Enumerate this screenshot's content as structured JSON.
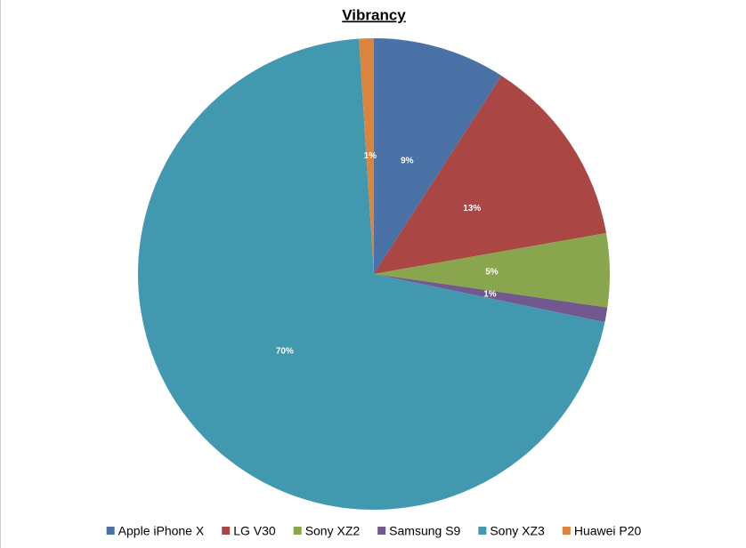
{
  "chart_data": {
    "type": "pie",
    "title": "Vibrancy",
    "categories": [
      "Apple iPhone X",
      "LG V30",
      "Sony XZ2",
      "Samsung S9",
      "Sony XZ3",
      "Huawei P20"
    ],
    "values": [
      9,
      13,
      5,
      1,
      70,
      1
    ],
    "value_labels": [
      "9%",
      "13%",
      "5%",
      "1%",
      "70%",
      "1%"
    ],
    "colors": [
      "#4a72a6",
      "#aa4643",
      "#89a54e",
      "#71588f",
      "#4198af",
      "#db843d"
    ],
    "legend": "bottom"
  }
}
